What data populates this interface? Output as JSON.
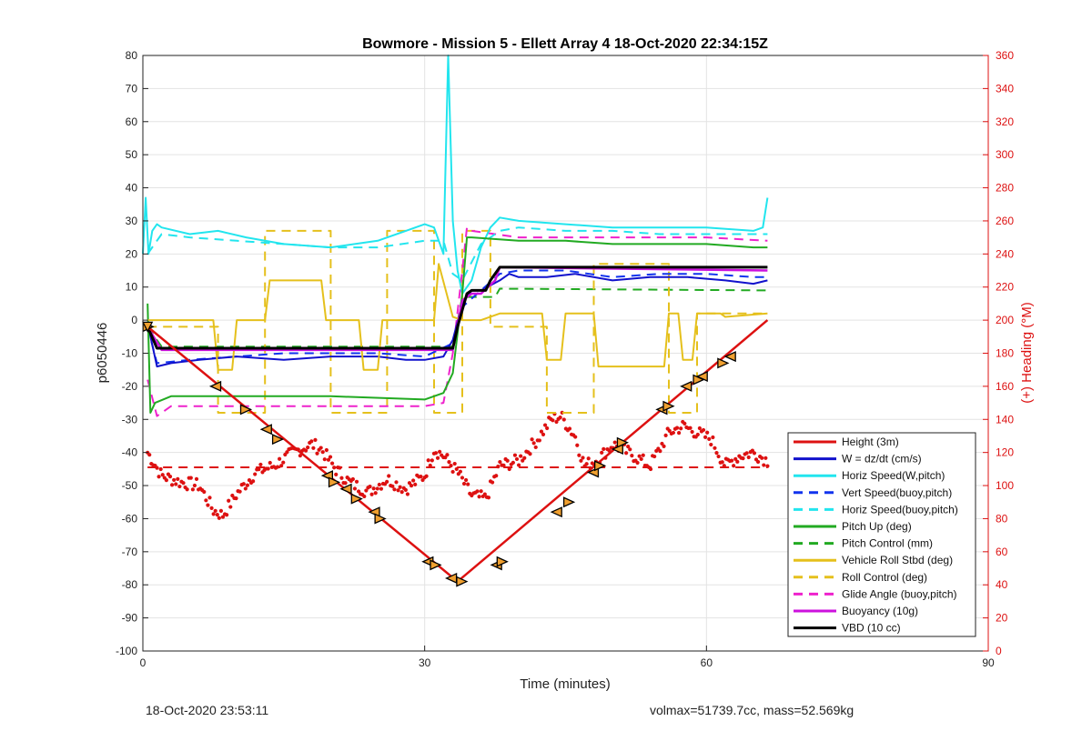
{
  "chart_data": {
    "type": "line",
    "title": "Bowmore - Mission 5 - Ellett Array 4 18-Oct-2020 22:34:15Z",
    "xlabel": "Time (minutes)",
    "ylabel": "p6050446",
    "y2label": "(+) Heading (°M)",
    "xlim": [
      0,
      90
    ],
    "ylim": [
      -100,
      80
    ],
    "y2lim": [
      0,
      360
    ],
    "xticks": [
      0,
      30,
      60,
      90
    ],
    "yticks": [
      -100,
      -90,
      -80,
      -70,
      -60,
      -50,
      -40,
      -30,
      -20,
      -10,
      0,
      10,
      20,
      30,
      40,
      50,
      60,
      70,
      80
    ],
    "y2ticks": [
      0,
      20,
      40,
      60,
      80,
      100,
      120,
      140,
      160,
      180,
      200,
      220,
      240,
      260,
      280,
      300,
      320,
      340,
      360
    ],
    "grid": true,
    "legend_position": "lower-right",
    "series": [
      {
        "name": "Height (3m)",
        "color": "#dd1111",
        "dash": "solid",
        "width": 2.5,
        "x": [
          0.5,
          33.5,
          66.5
        ],
        "y": [
          -2,
          -79,
          0
        ]
      },
      {
        "name": "W = dz/dt (cm/s)",
        "color": "#1111cc",
        "dash": "solid",
        "width": 2,
        "x": [
          0.5,
          1.5,
          3,
          6,
          10,
          15,
          20,
          25,
          28,
          30,
          32,
          33,
          34,
          35,
          36,
          38,
          39,
          40,
          43,
          46,
          50,
          54,
          58,
          62,
          65,
          66.5
        ],
        "y": [
          -1,
          -14,
          -13,
          -12,
          -11,
          -12,
          -11,
          -11,
          -12,
          -12,
          -11,
          -6,
          5,
          9,
          9,
          12,
          14,
          13,
          13,
          14,
          12,
          13,
          13,
          12,
          11,
          12
        ]
      },
      {
        "name": "Horiz Speed(W,pitch)",
        "color": "#22e5ee",
        "dash": "solid",
        "width": 2,
        "x": [
          0,
          0.3,
          0.6,
          1,
          1.5,
          2,
          5,
          8,
          11,
          15,
          20,
          25,
          28,
          30,
          31,
          32,
          32.5,
          33,
          33.5,
          34,
          35,
          36,
          37,
          38,
          40,
          45,
          50,
          55,
          60,
          65,
          66,
          66.5
        ],
        "y": [
          20,
          37,
          20,
          27,
          29,
          28,
          26,
          27,
          25,
          23,
          22,
          24,
          27,
          29,
          28,
          20,
          80,
          30,
          15,
          8,
          12,
          22,
          28,
          31,
          30,
          29,
          28,
          28,
          28,
          27,
          28,
          37
        ]
      },
      {
        "name": "Vert Speed(buoy,pitch)",
        "color": "#1133ee",
        "dash": "dashed",
        "width": 2,
        "x": [
          0.5,
          1.5,
          5,
          10,
          15,
          20,
          25,
          30,
          33,
          34,
          36,
          38,
          40,
          45,
          50,
          55,
          60,
          65,
          66.5
        ],
        "y": [
          -2,
          -13,
          -12,
          -11,
          -10,
          -10,
          -10,
          -11,
          -7,
          4,
          9,
          14,
          15,
          15,
          13,
          14,
          14,
          13,
          13
        ]
      },
      {
        "name": "Horiz Speed(buoy,pitch)",
        "color": "#22e5ee",
        "dash": "dashed",
        "width": 2,
        "x": [
          0.5,
          2,
          5,
          10,
          15,
          20,
          25,
          30,
          32,
          33,
          34,
          36,
          38,
          40,
          45,
          50,
          55,
          60,
          65,
          66.5
        ],
        "y": [
          20,
          26,
          25,
          24,
          23,
          22,
          22,
          24,
          24,
          14,
          12,
          23,
          27,
          28,
          27,
          27,
          26,
          26,
          26,
          26
        ]
      },
      {
        "name": "Pitch Up (deg)",
        "color": "#22aa22",
        "dash": "solid",
        "width": 2,
        "x": [
          0.5,
          0.8,
          1.3,
          3,
          10,
          20,
          30,
          32,
          33,
          34,
          34.5,
          35,
          40,
          45,
          50,
          55,
          60,
          65,
          66.5
        ],
        "y": [
          5,
          -28,
          -25,
          -23,
          -23,
          -23,
          -24,
          -22,
          -16,
          8,
          25,
          25,
          24,
          24,
          23,
          23,
          23,
          22,
          22
        ]
      },
      {
        "name": "Pitch Control (mm)",
        "color": "#22aa22",
        "dash": "dashed",
        "width": 2,
        "x": [
          0.5,
          2,
          33,
          34,
          37.5,
          38,
          66.5
        ],
        "y": [
          -2,
          -8,
          -8,
          7,
          7,
          9.5,
          9
        ]
      },
      {
        "name": "Vehicle Roll Stbd (deg)",
        "color": "#e5c01c",
        "dash": "solid",
        "width": 2,
        "x": [
          0.5,
          7.5,
          8,
          9.5,
          10,
          13,
          13.5,
          19,
          19.5,
          23,
          23.5,
          25,
          25.5,
          31,
          31.5,
          33,
          34,
          36,
          38,
          42.5,
          43,
          44.5,
          45,
          48,
          48.5,
          55.5,
          56,
          57,
          57.5,
          58.5,
          59,
          61.5,
          62,
          66.5
        ],
        "y": [
          0,
          0,
          -15,
          -15,
          0,
          0,
          12,
          12,
          0,
          0,
          -15,
          -15,
          0,
          0,
          17,
          1,
          0,
          0,
          2,
          2,
          -12,
          -12,
          2,
          2,
          -14,
          -14,
          2,
          2,
          -12,
          -12,
          2,
          2,
          1,
          2
        ]
      },
      {
        "name": "Roll Control (deg)",
        "color": "#e5c01c",
        "dash": "dashed",
        "width": 2,
        "x": [
          0.5,
          8,
          8,
          13,
          13,
          20,
          20,
          26,
          26,
          31,
          31,
          34,
          34,
          37,
          37,
          43,
          43,
          48,
          48,
          56,
          56,
          59,
          59,
          66.5
        ],
        "y": [
          -2,
          -2,
          -28,
          -28,
          27,
          27,
          -28,
          -28,
          27,
          27,
          -28,
          -28,
          27,
          27,
          -2,
          -2,
          -28,
          -28,
          17,
          17,
          -28,
          -28,
          2,
          2
        ]
      },
      {
        "name": "Glide Angle (buoy,pitch)",
        "color": "#ee22cc",
        "dash": "dashed",
        "width": 2,
        "x": [
          0.5,
          1.5,
          3,
          10,
          20,
          30,
          32,
          33,
          34,
          34.5,
          35,
          40,
          50,
          60,
          66.5
        ],
        "y": [
          -18,
          -29,
          -26,
          -26,
          -26,
          -26,
          -25,
          -10,
          15,
          28,
          27,
          25,
          25,
          25,
          24
        ]
      },
      {
        "name": "Buoyancy (10g)",
        "color": "#cc11dd",
        "dash": "solid",
        "width": 2.5,
        "x": [
          0.5,
          2,
          33,
          34,
          35,
          36,
          37.5,
          38,
          66.5
        ],
        "y": [
          -2,
          -9,
          -9,
          6,
          8,
          8,
          12,
          16,
          15
        ]
      },
      {
        "name": "VBD (10 cc)",
        "color": "#000000",
        "dash": "solid",
        "width": 3,
        "x": [
          0.5,
          1.5,
          33,
          33.5,
          34.5,
          35,
          36.5,
          37,
          38,
          66.5
        ],
        "y": [
          -2,
          -8.5,
          -8.5,
          -2,
          8,
          9,
          9,
          12,
          16,
          16
        ]
      }
    ],
    "heading_reference": {
      "axis": "right",
      "value": 111,
      "color": "#dd1111",
      "dash": "dashed",
      "x": [
        0.5,
        66.5
      ]
    },
    "heading_points": {
      "axis": "right",
      "color": "#dd1111",
      "anchors_x": [
        0.5,
        2,
        4,
        6,
        7.5,
        8.5,
        10,
        12,
        14,
        16,
        18,
        19,
        20.5,
        22,
        24,
        26,
        28,
        30,
        31,
        32,
        33.5,
        35,
        36.5,
        38,
        40,
        42,
        43.5,
        44.5,
        46,
        47,
        48.5,
        50,
        52,
        54,
        56,
        57.5,
        59,
        60.5,
        62,
        63.5,
        65,
        66.5
      ],
      "anchors_y": [
        120,
        106,
        102,
        100,
        85,
        82,
        95,
        108,
        112,
        120,
        125,
        122,
        110,
        102,
        96,
        104,
        98,
        106,
        122,
        118,
        108,
        94,
        92,
        112,
        115,
        128,
        140,
        142,
        130,
        112,
        116,
        125,
        119,
        112,
        132,
        136,
        132,
        128,
        112,
        118,
        120,
        115
      ],
      "count": 330
    },
    "legend": [
      "Height (3m)",
      "W = dz/dt (cm/s)",
      "Horiz Speed(W,pitch)",
      "Vert Speed(buoy,pitch)",
      "Horiz Speed(buoy,pitch)",
      "Pitch Up (deg)",
      "Pitch Control (mm)",
      "Vehicle Roll Stbd (deg)",
      "Roll Control (deg)",
      "Glide Angle (buoy,pitch)",
      "Buoyancy (10g)",
      "VBD (10 cc)"
    ],
    "depth_markers": {
      "x": [
        0.5,
        7.8,
        10.9,
        13.2,
        14.3,
        19.7,
        20.3,
        21.7,
        22.7,
        24.7,
        25.2,
        30.4,
        31.1,
        32.9,
        33.9,
        37.7,
        38.2,
        44.1,
        45.3,
        48.0,
        48.6,
        50.6,
        51.0,
        55.3,
        55.9,
        57.9,
        59.1,
        59.6,
        61.7,
        62.6
      ],
      "y": [
        -2,
        -20,
        -27,
        -33,
        -36,
        -47,
        -49,
        -51,
        -54,
        -58,
        -60,
        -73,
        -74,
        -78,
        -79,
        -74,
        -73,
        -58,
        -55,
        -46,
        -44,
        -39,
        -37,
        -27,
        -26,
        -20,
        -18,
        -17,
        -13,
        -11
      ]
    }
  },
  "footer": {
    "timestamp": "18-Oct-2020 23:53:11",
    "summary": "volmax=51739.7cc, mass=52.569kg"
  }
}
